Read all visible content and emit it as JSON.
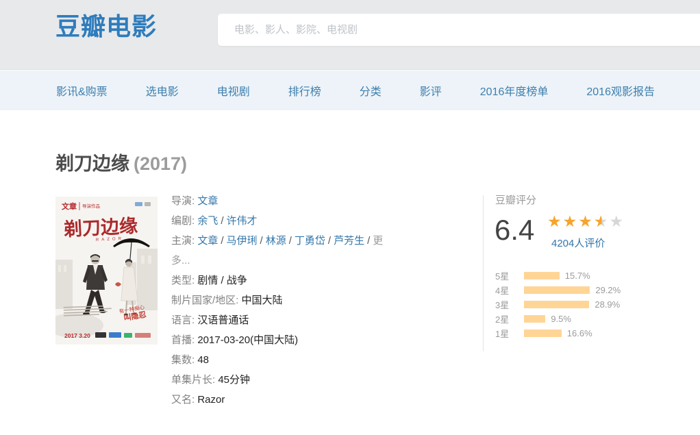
{
  "header": {
    "logo": "豆瓣电影",
    "search": {
      "placeholder": "电影、影人、影院、电视剧"
    }
  },
  "nav": {
    "items": [
      {
        "label": "影讯&购票"
      },
      {
        "label": "选电影"
      },
      {
        "label": "电视剧"
      },
      {
        "label": "排行榜"
      },
      {
        "label": "分类"
      },
      {
        "label": "影评"
      },
      {
        "label": "2016年度榜单"
      },
      {
        "label": "2016观影报告"
      }
    ]
  },
  "movie": {
    "title": "剃刀边缘",
    "year": "(2017)",
    "info": {
      "sep": "/",
      "director_label": "导演:",
      "director": "文章",
      "writers_label": "编剧:",
      "writer_1": "余飞",
      "writer_2": "许伟才",
      "cast_label": "主演:",
      "cast_1": "文章",
      "cast_2": "马伊琍",
      "cast_3": "林源",
      "cast_4": "丁勇岱",
      "cast_5": "芦芳生",
      "cast_more": "更多...",
      "genre_label": "类型:",
      "genre": "剧情 / 战争",
      "region_label": "制片国家/地区:",
      "region": "中国大陆",
      "language_label": "语言:",
      "language": "汉语普通话",
      "premiere_label": "首播:",
      "premiere": "2017-03-20(中国大陆)",
      "episodes_label": "集数:",
      "episodes": "48",
      "duration_label": "单集片长:",
      "duration": "45分钟",
      "aka_label": "又名:",
      "aka": "Razor"
    }
  },
  "rating": {
    "section_title": "豆瓣评分",
    "score": "6.4",
    "stars": 3.5,
    "votes_text": "4204人评价",
    "distribution": [
      {
        "label": "5星",
        "pct": 15.7,
        "pct_text": "15.7%"
      },
      {
        "label": "4星",
        "pct": 29.2,
        "pct_text": "29.2%"
      },
      {
        "label": "3星",
        "pct": 28.9,
        "pct_text": "28.9%"
      },
      {
        "label": "2星",
        "pct": 9.5,
        "pct_text": "9.5%"
      },
      {
        "label": "1星",
        "pct": 16.6,
        "pct_text": "16.6%"
      }
    ]
  },
  "poster": {
    "credit_name": "文章",
    "credit_role": "导演作品",
    "title": "剃刀边缘",
    "subtitle": "RAZOR",
    "tagline_1": "有一种痴心",
    "tagline_2": "叫隐忍",
    "release": "2017 3.20"
  },
  "colors": {
    "brand_blue": "#2e7cbc",
    "nav_blue": "#3d7fae",
    "link_blue": "#3377aa",
    "star_orange": "#f7a42a",
    "bar_orange": "#ffd596",
    "poster_red": "#b5292e",
    "header_bg": "#e8e9eb",
    "nav_bg": "#edf3f8"
  }
}
